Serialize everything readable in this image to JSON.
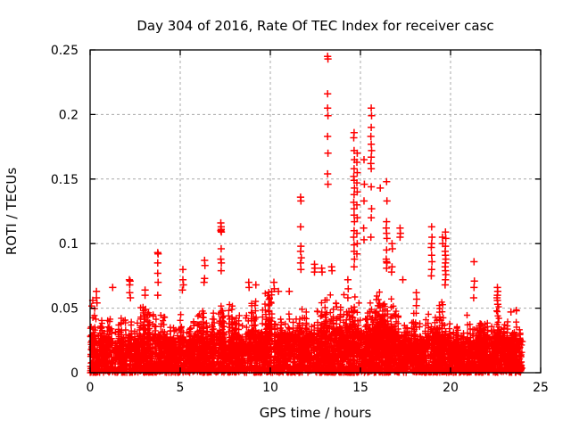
{
  "chart_data": {
    "type": "scatter",
    "title": "Day 304 of 2016, Rate Of TEC Index for receiver casc",
    "xlabel": "GPS time / hours",
    "ylabel": "ROTI / TECUs",
    "xlim": [
      0,
      25
    ],
    "ylim": [
      0,
      0.25
    ],
    "xticks": [
      0,
      5,
      10,
      15,
      20,
      25
    ],
    "xtick_labels": [
      "0",
      "5",
      "10",
      "15",
      "20",
      "25"
    ],
    "yticks": [
      0,
      0.05,
      0.1,
      0.15,
      0.2,
      0.25
    ],
    "ytick_labels": [
      "0",
      "0.05",
      "0.1",
      "0.15",
      "0.2",
      "0.25"
    ],
    "grid": "dashed",
    "legend": "none",
    "marker": "plus",
    "marker_color": "#ff0000",
    "grid_color": "#a9a9a9",
    "axis_color": "#000000",
    "background": "#ffffff",
    "data_hours_range": [
      0,
      24
    ],
    "baseline_envelope": {
      "step_hours": 0.5,
      "start_hour": 0,
      "values": [
        0.05,
        0.044,
        0.042,
        0.033,
        0.047,
        0.038,
        0.047,
        0.043,
        0.042,
        0.039,
        0.046,
        0.035,
        0.043,
        0.039,
        0.05,
        0.043,
        0.046,
        0.043,
        0.05,
        0.047,
        0.056,
        0.044,
        0.046,
        0.05,
        0.043,
        0.047,
        0.052,
        0.051,
        0.05,
        0.056,
        0.053,
        0.046,
        0.056,
        0.055,
        0.045,
        0.031,
        0.043,
        0.038,
        0.046,
        0.054,
        0.036,
        0.029,
        0.042,
        0.035,
        0.039,
        0.049,
        0.041,
        0.045,
        0.043
      ]
    },
    "outlier_points": [
      [
        0.15,
        0.056
      ],
      [
        0.35,
        0.063
      ],
      [
        0.35,
        0.058
      ],
      [
        0.38,
        0.054
      ],
      [
        1.25,
        0.066
      ],
      [
        2.18,
        0.072
      ],
      [
        2.22,
        0.071
      ],
      [
        2.2,
        0.068
      ],
      [
        2.2,
        0.062
      ],
      [
        2.24,
        0.058
      ],
      [
        3.05,
        0.064
      ],
      [
        3.05,
        0.06
      ],
      [
        3.08,
        0.049
      ],
      [
        3.75,
        0.093
      ],
      [
        3.77,
        0.092
      ],
      [
        3.75,
        0.085
      ],
      [
        3.75,
        0.077
      ],
      [
        3.77,
        0.07
      ],
      [
        3.75,
        0.06
      ],
      [
        5.15,
        0.08
      ],
      [
        5.15,
        0.072
      ],
      [
        5.18,
        0.068
      ],
      [
        5.12,
        0.064
      ],
      [
        6.35,
        0.087
      ],
      [
        6.37,
        0.083
      ],
      [
        6.35,
        0.073
      ],
      [
        6.32,
        0.07
      ],
      [
        7.25,
        0.116
      ],
      [
        7.27,
        0.113
      ],
      [
        7.27,
        0.111
      ],
      [
        7.25,
        0.11
      ],
      [
        7.28,
        0.109
      ],
      [
        7.27,
        0.096
      ],
      [
        7.25,
        0.088
      ],
      [
        7.28,
        0.085
      ],
      [
        7.27,
        0.079
      ],
      [
        8.8,
        0.07
      ],
      [
        8.82,
        0.066
      ],
      [
        9.2,
        0.068
      ],
      [
        10.2,
        0.07
      ],
      [
        10.22,
        0.065
      ],
      [
        10.45,
        0.063
      ],
      [
        11.05,
        0.063
      ],
      [
        11.68,
        0.136
      ],
      [
        11.7,
        0.133
      ],
      [
        11.68,
        0.113
      ],
      [
        11.7,
        0.098
      ],
      [
        11.68,
        0.094
      ],
      [
        11.72,
        0.089
      ],
      [
        11.68,
        0.085
      ],
      [
        11.7,
        0.08
      ],
      [
        12.45,
        0.084
      ],
      [
        12.47,
        0.081
      ],
      [
        12.45,
        0.078
      ],
      [
        12.85,
        0.081
      ],
      [
        12.87,
        0.078
      ],
      [
        13.18,
        0.245
      ],
      [
        13.2,
        0.243
      ],
      [
        13.18,
        0.216
      ],
      [
        13.18,
        0.205
      ],
      [
        13.2,
        0.199
      ],
      [
        13.18,
        0.183
      ],
      [
        13.2,
        0.17
      ],
      [
        13.18,
        0.154
      ],
      [
        13.2,
        0.146
      ],
      [
        13.4,
        0.082
      ],
      [
        13.42,
        0.079
      ],
      [
        14.3,
        0.072
      ],
      [
        14.32,
        0.065
      ],
      [
        14.3,
        0.058
      ],
      [
        14.65,
        0.186
      ],
      [
        14.63,
        0.182
      ],
      [
        14.65,
        0.172
      ],
      [
        14.67,
        0.165
      ],
      [
        14.65,
        0.158
      ],
      [
        14.63,
        0.152
      ],
      [
        14.65,
        0.149
      ],
      [
        14.67,
        0.143
      ],
      [
        14.65,
        0.138
      ],
      [
        14.63,
        0.132
      ],
      [
        14.65,
        0.127
      ],
      [
        14.65,
        0.122
      ],
      [
        14.67,
        0.117
      ],
      [
        14.65,
        0.11
      ],
      [
        14.63,
        0.105
      ],
      [
        14.65,
        0.099
      ],
      [
        14.65,
        0.094
      ],
      [
        14.67,
        0.088
      ],
      [
        14.65,
        0.082
      ],
      [
        14.82,
        0.17
      ],
      [
        14.8,
        0.163
      ],
      [
        14.82,
        0.155
      ],
      [
        14.8,
        0.147
      ],
      [
        14.82,
        0.14
      ],
      [
        14.8,
        0.13
      ],
      [
        14.82,
        0.12
      ],
      [
        14.8,
        0.108
      ],
      [
        14.82,
        0.1
      ],
      [
        14.8,
        0.092
      ],
      [
        15.2,
        0.165
      ],
      [
        15.22,
        0.146
      ],
      [
        15.2,
        0.133
      ],
      [
        15.18,
        0.112
      ],
      [
        15.2,
        0.103
      ],
      [
        15.6,
        0.205
      ],
      [
        15.62,
        0.199
      ],
      [
        15.6,
        0.19
      ],
      [
        15.58,
        0.183
      ],
      [
        15.6,
        0.177
      ],
      [
        15.62,
        0.172
      ],
      [
        15.6,
        0.167
      ],
      [
        15.58,
        0.162
      ],
      [
        15.6,
        0.158
      ],
      [
        15.6,
        0.144
      ],
      [
        15.62,
        0.127
      ],
      [
        15.6,
        0.12
      ],
      [
        15.58,
        0.105
      ],
      [
        16.1,
        0.143
      ],
      [
        16.45,
        0.148
      ],
      [
        16.47,
        0.133
      ],
      [
        16.45,
        0.117
      ],
      [
        16.43,
        0.112
      ],
      [
        16.45,
        0.108
      ],
      [
        16.47,
        0.104
      ],
      [
        16.45,
        0.095
      ],
      [
        16.43,
        0.088
      ],
      [
        16.45,
        0.086
      ],
      [
        16.47,
        0.085
      ],
      [
        16.45,
        0.081
      ],
      [
        16.75,
        0.1
      ],
      [
        16.77,
        0.096
      ],
      [
        16.75,
        0.082
      ],
      [
        16.73,
        0.078
      ],
      [
        17.2,
        0.112
      ],
      [
        17.22,
        0.108
      ],
      [
        17.2,
        0.105
      ],
      [
        17.35,
        0.072
      ],
      [
        18.1,
        0.062
      ],
      [
        18.12,
        0.057
      ],
      [
        18.1,
        0.052
      ],
      [
        18.95,
        0.113
      ],
      [
        18.97,
        0.105
      ],
      [
        18.95,
        0.1
      ],
      [
        18.93,
        0.097
      ],
      [
        18.95,
        0.091
      ],
      [
        18.97,
        0.086
      ],
      [
        18.95,
        0.08
      ],
      [
        18.93,
        0.075
      ],
      [
        19.55,
        0.105
      ],
      [
        19.57,
        0.1
      ],
      [
        19.72,
        0.109
      ],
      [
        19.74,
        0.104
      ],
      [
        19.72,
        0.098
      ],
      [
        19.7,
        0.094
      ],
      [
        19.72,
        0.091
      ],
      [
        19.74,
        0.088
      ],
      [
        19.72,
        0.085
      ],
      [
        19.7,
        0.082
      ],
      [
        19.72,
        0.079
      ],
      [
        19.74,
        0.076
      ],
      [
        19.72,
        0.072
      ],
      [
        19.7,
        0.068
      ],
      [
        21.3,
        0.086
      ],
      [
        21.32,
        0.071
      ],
      [
        21.3,
        0.066
      ],
      [
        21.28,
        0.058
      ],
      [
        22.6,
        0.066
      ],
      [
        22.62,
        0.063
      ],
      [
        22.6,
        0.06
      ],
      [
        22.58,
        0.058
      ],
      [
        22.6,
        0.056
      ],
      [
        22.62,
        0.053
      ],
      [
        23.35,
        0.047
      ],
      [
        23.65,
        0.048
      ]
    ],
    "density": {
      "seed": 304,
      "bottom_strip_points": 800,
      "base_points": 2900,
      "texture_columns": 460
    }
  }
}
